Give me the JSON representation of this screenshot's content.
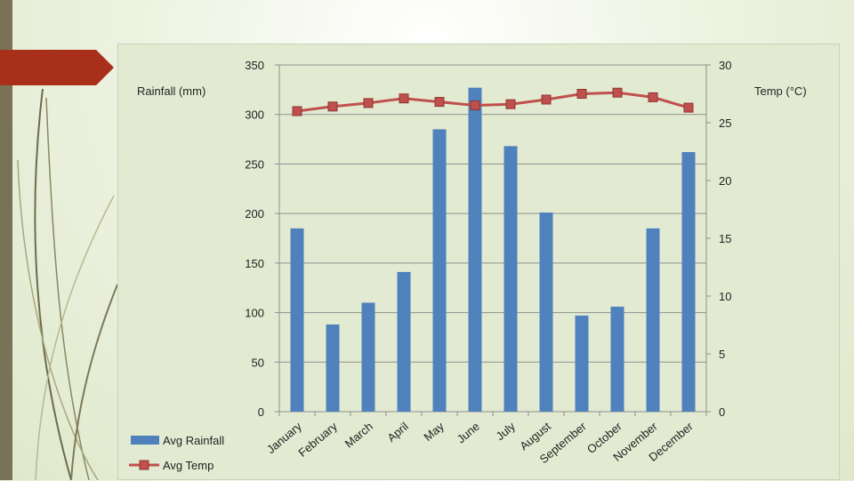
{
  "slide": {
    "accent_color": "#a8301a",
    "sidebar_color": "#7a7256",
    "background_color": "#e2ebd2"
  },
  "chart_data": {
    "type": "bar+line",
    "categories": [
      "January",
      "February",
      "March",
      "April",
      "May",
      "June",
      "July",
      "August",
      "September",
      "October",
      "November",
      "December"
    ],
    "series": [
      {
        "name": "Avg Rainfall",
        "type": "bar",
        "axis": "left",
        "color": "#4f81bd",
        "values": [
          185,
          88,
          110,
          141,
          285,
          327,
          268,
          201,
          97,
          106,
          185,
          262
        ]
      },
      {
        "name": "Avg Temp",
        "type": "line",
        "axis": "right",
        "color": "#c0504d",
        "values": [
          26.0,
          26.4,
          26.7,
          27.1,
          26.8,
          26.5,
          26.6,
          27.0,
          27.5,
          27.6,
          27.2,
          26.3
        ]
      }
    ],
    "ylabel_left": "Rainfall (mm)",
    "ylabel_right": "Temp (°C)",
    "ylim_left": [
      0,
      350
    ],
    "ylim_right": [
      0,
      30
    ],
    "yticks_left": [
      "0",
      "50",
      "100",
      "150",
      "200",
      "250",
      "300",
      "350"
    ],
    "yticks_right": [
      "0",
      "5",
      "10",
      "15",
      "20",
      "25",
      "30"
    ],
    "grid": true,
    "legend_position": "bottom-left"
  }
}
